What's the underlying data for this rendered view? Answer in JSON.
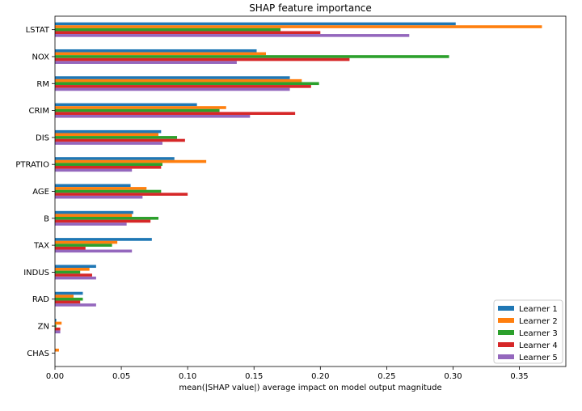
{
  "chart_data": {
    "type": "bar",
    "orientation": "horizontal",
    "title": "SHAP feature importance",
    "xlabel": "mean(|SHAP value|) average impact on model output magnitude",
    "ylabel": "",
    "xlim": [
      0,
      0.385
    ],
    "xticks": [
      0.0,
      0.05,
      0.1,
      0.15,
      0.2,
      0.25,
      0.3,
      0.35
    ],
    "xtick_labels": [
      "0.00",
      "0.05",
      "0.10",
      "0.15",
      "0.20",
      "0.25",
      "0.30",
      "0.35"
    ],
    "grid": false,
    "legend_position": "bottom-right",
    "categories": [
      "LSTAT",
      "NOX",
      "RM",
      "CRIM",
      "DIS",
      "PTRATIO",
      "AGE",
      "B",
      "TAX",
      "INDUS",
      "RAD",
      "ZN",
      "CHAS"
    ],
    "series": [
      {
        "name": "Learner 1",
        "color": "#1f77b4",
        "values": [
          0.302,
          0.152,
          0.177,
          0.107,
          0.08,
          0.09,
          0.057,
          0.059,
          0.073,
          0.031,
          0.021,
          0.001,
          0.0
        ]
      },
      {
        "name": "Learner 2",
        "color": "#ff7f0e",
        "values": [
          0.367,
          0.159,
          0.186,
          0.129,
          0.078,
          0.114,
          0.069,
          0.058,
          0.047,
          0.026,
          0.014,
          0.005,
          0.003
        ]
      },
      {
        "name": "Learner 3",
        "color": "#2ca02c",
        "values": [
          0.17,
          0.297,
          0.199,
          0.124,
          0.092,
          0.081,
          0.08,
          0.078,
          0.043,
          0.019,
          0.021,
          0.001,
          0.0
        ]
      },
      {
        "name": "Learner 4",
        "color": "#d62728",
        "values": [
          0.2,
          0.222,
          0.193,
          0.181,
          0.098,
          0.08,
          0.1,
          0.072,
          0.023,
          0.028,
          0.019,
          0.004,
          0.0
        ]
      },
      {
        "name": "Learner 5",
        "color": "#9467bd",
        "values": [
          0.267,
          0.137,
          0.177,
          0.147,
          0.081,
          0.058,
          0.066,
          0.054,
          0.058,
          0.031,
          0.031,
          0.004,
          0.0
        ]
      }
    ]
  }
}
